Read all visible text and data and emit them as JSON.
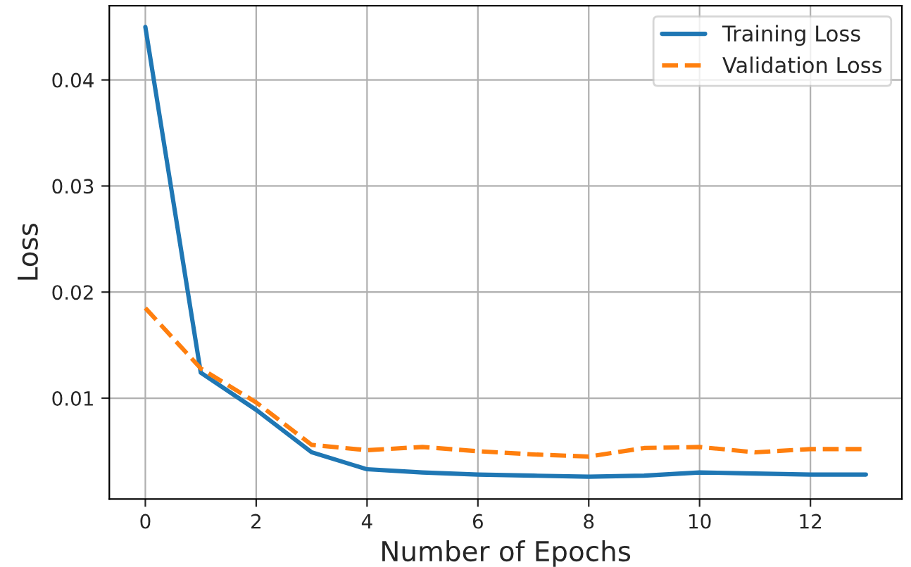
{
  "chart_data": {
    "type": "line",
    "xlabel": "Number of Epochs",
    "ylabel": "Loss",
    "x": [
      0,
      1,
      2,
      3,
      4,
      5,
      6,
      7,
      8,
      9,
      10,
      11,
      12,
      13
    ],
    "series": [
      {
        "name": "Training Loss",
        "color": "#1f77b4",
        "line_style": "solid",
        "values": [
          0.045,
          0.0124,
          0.0089,
          0.0049,
          0.0033,
          0.003,
          0.0028,
          0.0027,
          0.0026,
          0.0027,
          0.003,
          0.0029,
          0.0028,
          0.0028
        ]
      },
      {
        "name": "Validation Loss",
        "color": "#ff7f0e",
        "line_style": "dashed",
        "values": [
          0.0185,
          0.0128,
          0.0096,
          0.0056,
          0.0051,
          0.0054,
          0.005,
          0.0047,
          0.0045,
          0.0053,
          0.0054,
          0.0049,
          0.0052,
          0.0052
        ]
      }
    ],
    "xlim": [
      -0.65,
      13.65
    ],
    "xticks": [
      0,
      2,
      4,
      6,
      8,
      10,
      12
    ],
    "ylim": [
      0.0005,
      0.047
    ],
    "yticks": [
      0.01,
      0.02,
      0.03,
      0.04
    ],
    "grid": true,
    "legend": "top right",
    "marker": "none"
  }
}
